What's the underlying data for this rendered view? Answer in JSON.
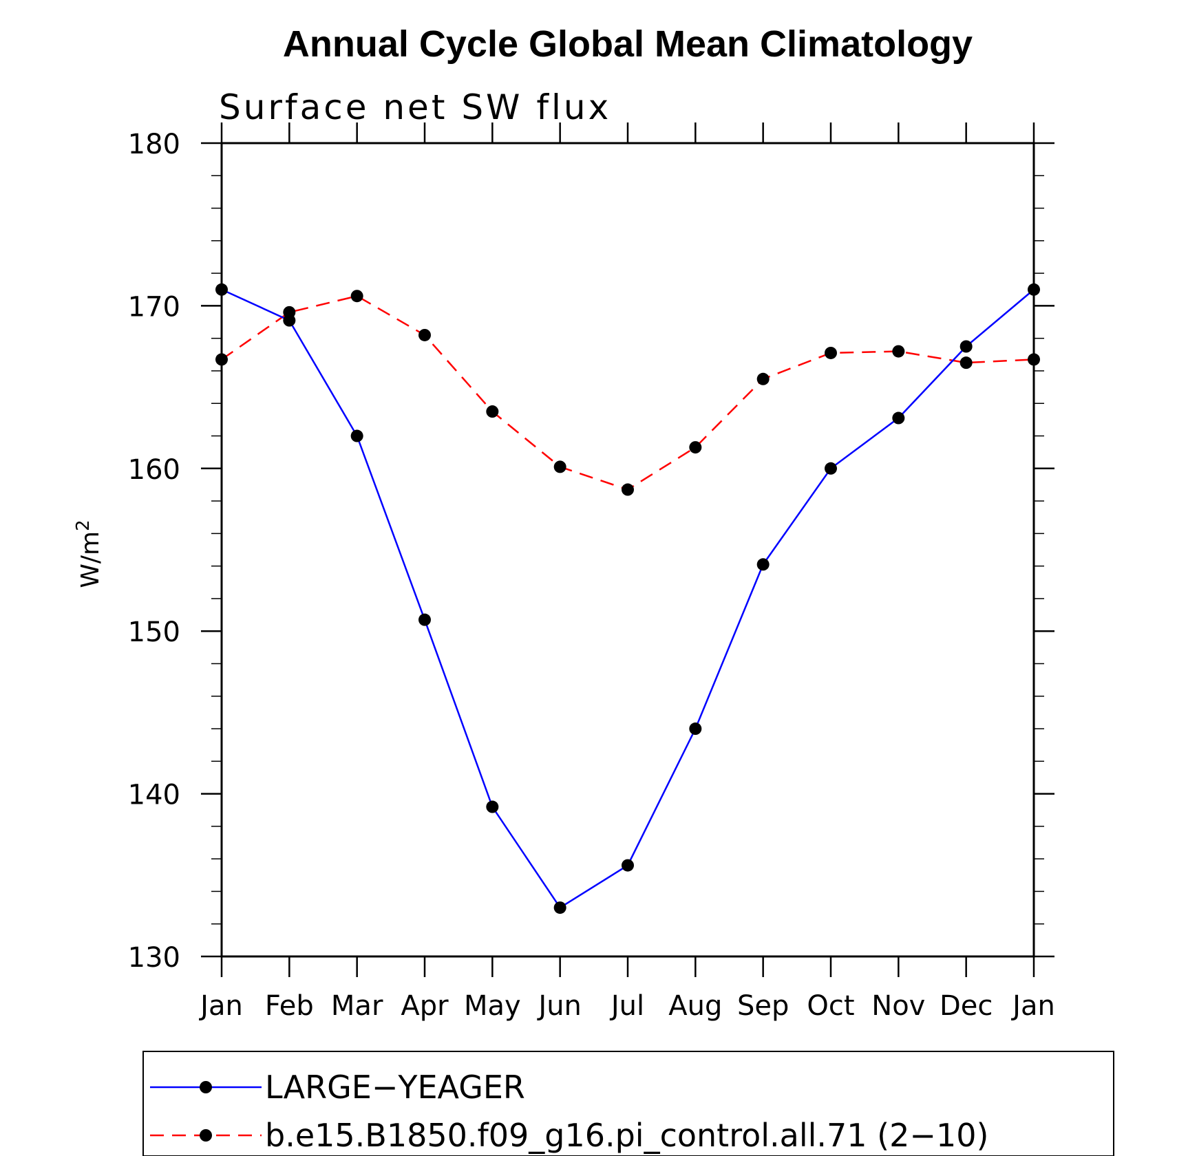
{
  "chart_data": {
    "type": "line",
    "title": "Annual Cycle Global Mean Climatology",
    "subtitle": "Surface net SW flux",
    "xlabel": "",
    "ylabel_base": "W/m",
    "ylabel_sup": "2",
    "categories": [
      "Jan",
      "Feb",
      "Mar",
      "Apr",
      "May",
      "Jun",
      "Jul",
      "Aug",
      "Sep",
      "Oct",
      "Nov",
      "Dec",
      "Jan"
    ],
    "ylim": [
      130,
      180
    ],
    "yticks": [
      130,
      140,
      150,
      160,
      170,
      180
    ],
    "y_minor_step": 2,
    "grid": false,
    "legend_position": "bottom",
    "series": [
      {
        "name": "LARGE−YEAGER",
        "color": "#0000ff",
        "style": "solid",
        "marker": "circle",
        "values": [
          171.0,
          169.1,
          162.0,
          150.7,
          139.2,
          133.0,
          135.6,
          144.0,
          154.1,
          160.0,
          163.1,
          167.5,
          171.0
        ]
      },
      {
        "name": "b.e15.B1850.f09_g16.pi_control.all.71 (2−10)",
        "color": "#ff0000",
        "style": "dashed",
        "marker": "circle",
        "values": [
          166.7,
          169.6,
          170.6,
          168.2,
          163.5,
          160.1,
          158.7,
          161.3,
          165.5,
          167.1,
          167.2,
          166.5,
          166.7
        ]
      }
    ]
  }
}
